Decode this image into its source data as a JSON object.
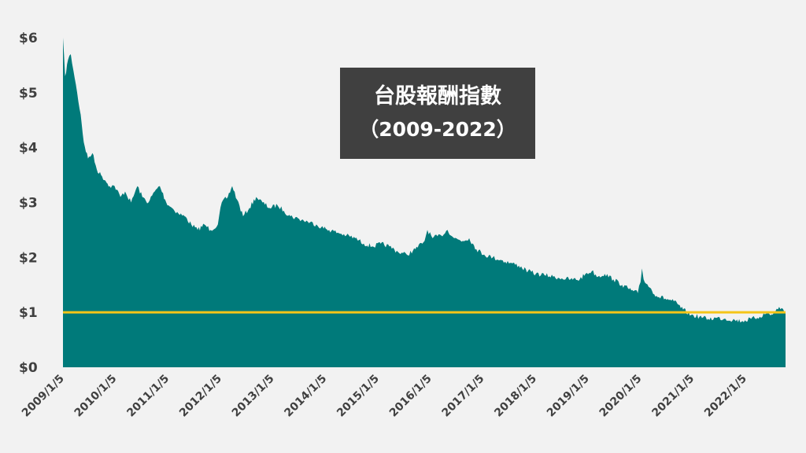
{
  "chart_data": {
    "type": "area",
    "title": "台股報酬指數",
    "subtitle": "（2009-2022）",
    "xlabel": "",
    "ylabel": "",
    "y_ticks": [
      "$0",
      "$1",
      "$2",
      "$3",
      "$4",
      "$5",
      "$6"
    ],
    "ylim": [
      0,
      6
    ],
    "x_ticks": [
      "2009/1/5",
      "2010/1/5",
      "2011/1/5",
      "2012/1/5",
      "2013/1/5",
      "2014/1/5",
      "2015/1/5",
      "2016/1/5",
      "2017/1/5",
      "2018/1/5",
      "2019/1/5",
      "2020/1/5",
      "2021/1/5",
      "2022/1/5"
    ],
    "xlim": [
      "2009-01-05",
      "2022-12-30"
    ],
    "grid": false,
    "reference_line": {
      "y": 1,
      "color": "#f5c518"
    },
    "series": [
      {
        "color": "#007a7a",
        "points": [
          [
            "2009-01-05",
            6.0
          ],
          [
            "2009-01-20",
            5.3
          ],
          [
            "2009-02-10",
            5.6
          ],
          [
            "2009-03-01",
            5.7
          ],
          [
            "2009-03-20",
            5.4
          ],
          [
            "2009-04-15",
            5.0
          ],
          [
            "2009-05-10",
            4.6
          ],
          [
            "2009-06-01",
            4.1
          ],
          [
            "2009-07-01",
            3.8
          ],
          [
            "2009-08-01",
            3.9
          ],
          [
            "2009-09-01",
            3.6
          ],
          [
            "2009-10-01",
            3.5
          ],
          [
            "2009-11-01",
            3.4
          ],
          [
            "2009-12-01",
            3.3
          ],
          [
            "2010-01-05",
            3.3
          ],
          [
            "2010-02-15",
            3.1
          ],
          [
            "2010-03-20",
            3.2
          ],
          [
            "2010-05-01",
            3.0
          ],
          [
            "2010-06-15",
            3.3
          ],
          [
            "2010-07-20",
            3.1
          ],
          [
            "2010-09-01",
            3.0
          ],
          [
            "2010-10-15",
            3.2
          ],
          [
            "2010-11-20",
            3.3
          ],
          [
            "2011-01-05",
            3.0
          ],
          [
            "2011-02-15",
            2.9
          ],
          [
            "2011-04-01",
            2.8
          ],
          [
            "2011-05-15",
            2.75
          ],
          [
            "2011-07-01",
            2.6
          ],
          [
            "2011-08-15",
            2.5
          ],
          [
            "2011-10-01",
            2.6
          ],
          [
            "2011-11-15",
            2.5
          ],
          [
            "2012-01-05",
            2.6
          ],
          [
            "2012-02-01",
            3.0
          ],
          [
            "2012-03-15",
            3.1
          ],
          [
            "2012-04-15",
            3.3
          ],
          [
            "2012-05-20",
            3.05
          ],
          [
            "2012-07-01",
            2.75
          ],
          [
            "2012-08-15",
            2.9
          ],
          [
            "2012-10-01",
            3.1
          ],
          [
            "2012-11-15",
            3.0
          ],
          [
            "2013-01-05",
            2.9
          ],
          [
            "2013-03-01",
            2.95
          ],
          [
            "2013-04-15",
            2.85
          ],
          [
            "2013-06-01",
            2.75
          ],
          [
            "2013-08-01",
            2.7
          ],
          [
            "2013-10-01",
            2.65
          ],
          [
            "2013-12-01",
            2.6
          ],
          [
            "2014-01-05",
            2.55
          ],
          [
            "2014-03-01",
            2.5
          ],
          [
            "2014-05-01",
            2.45
          ],
          [
            "2014-07-01",
            2.4
          ],
          [
            "2014-09-01",
            2.35
          ],
          [
            "2014-11-01",
            2.25
          ],
          [
            "2015-01-05",
            2.2
          ],
          [
            "2015-03-01",
            2.25
          ],
          [
            "2015-05-01",
            2.2
          ],
          [
            "2015-07-01",
            2.1
          ],
          [
            "2015-09-01",
            2.05
          ],
          [
            "2015-11-01",
            2.15
          ],
          [
            "2016-01-05",
            2.3
          ],
          [
            "2016-01-25",
            2.5
          ],
          [
            "2016-03-01",
            2.35
          ],
          [
            "2016-05-01",
            2.4
          ],
          [
            "2016-06-15",
            2.5
          ],
          [
            "2016-08-01",
            2.35
          ],
          [
            "2016-10-01",
            2.3
          ],
          [
            "2016-11-15",
            2.35
          ],
          [
            "2017-01-05",
            2.15
          ],
          [
            "2017-03-01",
            2.05
          ],
          [
            "2017-05-01",
            2.0
          ],
          [
            "2017-07-01",
            1.95
          ],
          [
            "2017-09-01",
            1.9
          ],
          [
            "2017-11-01",
            1.85
          ],
          [
            "2018-01-05",
            1.75
          ],
          [
            "2018-03-01",
            1.7
          ],
          [
            "2018-05-01",
            1.68
          ],
          [
            "2018-07-01",
            1.65
          ],
          [
            "2018-09-01",
            1.62
          ],
          [
            "2018-11-01",
            1.6
          ],
          [
            "2019-01-05",
            1.6
          ],
          [
            "2019-02-15",
            1.7
          ],
          [
            "2019-04-01",
            1.75
          ],
          [
            "2019-05-15",
            1.65
          ],
          [
            "2019-07-01",
            1.7
          ],
          [
            "2019-09-01",
            1.6
          ],
          [
            "2019-11-01",
            1.5
          ],
          [
            "2020-01-05",
            1.4
          ],
          [
            "2020-02-20",
            1.35
          ],
          [
            "2020-03-10",
            1.55
          ],
          [
            "2020-03-20",
            1.8
          ],
          [
            "2020-04-01",
            1.6
          ],
          [
            "2020-05-15",
            1.45
          ],
          [
            "2020-07-01",
            1.3
          ],
          [
            "2020-09-01",
            1.25
          ],
          [
            "2020-11-01",
            1.2
          ],
          [
            "2021-01-05",
            1.05
          ],
          [
            "2021-03-01",
            0.95
          ],
          [
            "2021-05-01",
            0.92
          ],
          [
            "2021-07-01",
            0.88
          ],
          [
            "2021-09-01",
            0.9
          ],
          [
            "2021-11-01",
            0.88
          ],
          [
            "2022-01-05",
            0.86
          ],
          [
            "2022-03-01",
            0.84
          ],
          [
            "2022-05-01",
            0.88
          ],
          [
            "2022-07-01",
            0.92
          ],
          [
            "2022-08-15",
            0.98
          ],
          [
            "2022-10-01",
            0.96
          ],
          [
            "2022-11-15",
            1.1
          ],
          [
            "2022-12-30",
            1.0
          ]
        ]
      }
    ]
  }
}
